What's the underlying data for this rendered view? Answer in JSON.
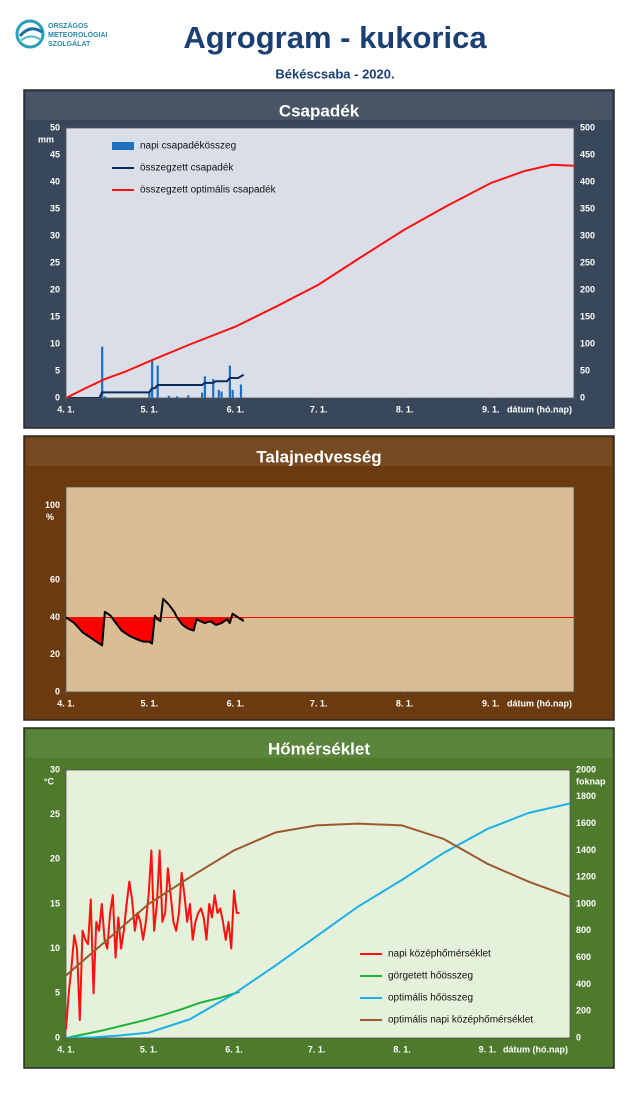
{
  "header": {
    "logo_text": [
      "ORSZÁGOS",
      "METEOROLÓGIAI",
      "SZOLGÁLAT"
    ],
    "title": "Agrogram - kukorica",
    "subtitle": "Békéscsaba - 2020."
  },
  "chart_data": [
    {
      "type": "combo",
      "title": "Csapadék",
      "panel_color": "#38475a",
      "plot_color": "#d9dee8",
      "xlabel": "dátum (hó.nap)",
      "ylabel": "mm",
      "legend": "upper-left",
      "xlim": [
        0,
        183
      ],
      "xticks": [
        {
          "value": 0,
          "label": "4. 1."
        },
        {
          "value": 30,
          "label": "5. 1."
        },
        {
          "value": 61,
          "label": "6. 1."
        },
        {
          "value": 91,
          "label": "7. 1."
        },
        {
          "value": 122,
          "label": "8. 1."
        },
        {
          "value": 153,
          "label": "9. 1."
        }
      ],
      "ylim": [
        0,
        50
      ],
      "yticks": [
        0,
        5,
        10,
        15,
        20,
        25,
        30,
        35,
        40,
        45,
        50
      ],
      "y2lim": [
        0,
        500
      ],
      "y2ticks": [
        0,
        50,
        100,
        150,
        200,
        250,
        300,
        350,
        400,
        450,
        500
      ],
      "series": [
        {
          "name": "napi csapadékösszeg",
          "type": "bar",
          "color": "#1f6fc0",
          "x": [
            13,
            14,
            30,
            31,
            33,
            37,
            40,
            44,
            49,
            50,
            53,
            55,
            56,
            59,
            60,
            63
          ],
          "values": [
            9.5,
            0.3,
            1,
            7,
            6,
            0.4,
            0.3,
            0.5,
            1,
            4,
            3.5,
            1.5,
            1.2,
            6,
            1.5,
            2.5
          ]
        },
        {
          "name": "összegzett csapadék",
          "type": "line",
          "axis": "y2",
          "color": "#0d2a5c",
          "x": [
            0,
            12,
            13,
            30,
            31,
            32,
            33,
            49,
            50,
            53,
            54,
            58,
            59,
            62,
            63,
            64
          ],
          "values": [
            0,
            0,
            10.5,
            10.5,
            18,
            18,
            24,
            24,
            28,
            28,
            31,
            31,
            37,
            37,
            40,
            43
          ]
        },
        {
          "name": "összegzett optimális csapadék",
          "type": "line",
          "axis": "y2",
          "color": "#ff1010",
          "x": [
            0,
            7,
            14,
            21,
            30,
            45,
            61,
            76,
            91,
            106,
            122,
            137,
            153,
            165,
            175,
            183
          ],
          "values": [
            0,
            18,
            35,
            48,
            68,
            100,
            132,
            170,
            210,
            260,
            312,
            355,
            398,
            420,
            432,
            430
          ]
        }
      ]
    },
    {
      "type": "combo",
      "title": "Talajnedvesség",
      "panel_color": "#6b3a0e",
      "plot_color": "#d9bd95",
      "xlabel": "dátum (hó.nap)",
      "ylabel": "%",
      "xlim": [
        0,
        183
      ],
      "xticks": [
        {
          "value": 0,
          "label": "4. 1."
        },
        {
          "value": 30,
          "label": "5. 1."
        },
        {
          "value": 61,
          "label": "6. 1."
        },
        {
          "value": 91,
          "label": "7. 1."
        },
        {
          "value": 122,
          "label": "8. 1."
        },
        {
          "value": 153,
          "label": "9. 1."
        }
      ],
      "ylim": [
        0,
        110
      ],
      "yticks": [
        0,
        20,
        40,
        60,
        100
      ],
      "reference": 40,
      "reference_color": "#ff0000",
      "series": [
        {
          "type": "line",
          "color": "#000000",
          "deficit_color": "#ff0000",
          "x": [
            0,
            3,
            6,
            10,
            12,
            13,
            14,
            16,
            18,
            20,
            23,
            26,
            28,
            30,
            31,
            32,
            33,
            34,
            35,
            37,
            39,
            40,
            42,
            44,
            46,
            47,
            50,
            52,
            54,
            56,
            58,
            59,
            60,
            62,
            64
          ],
          "values": [
            40,
            37,
            32,
            28,
            26,
            25,
            43,
            41,
            37,
            33,
            30,
            28,
            27,
            27,
            26,
            41,
            39,
            38,
            50,
            47,
            43,
            40,
            36,
            34,
            33,
            39,
            37,
            38,
            36,
            37,
            39,
            37,
            42,
            40,
            38
          ]
        }
      ]
    },
    {
      "type": "combo",
      "title": "Hőmérséklet",
      "panel_color": "#4d7a2b",
      "plot_color": "#e5f1db",
      "xlabel": "dátum (hó.nap)",
      "ylabel": "°C",
      "y2label": "foknap",
      "legend": "lower-right",
      "xlim": [
        0,
        183
      ],
      "xticks": [
        {
          "value": 0,
          "label": "4. 1."
        },
        {
          "value": 30,
          "label": "5. 1."
        },
        {
          "value": 61,
          "label": "6. 1."
        },
        {
          "value": 91,
          "label": "7. 1."
        },
        {
          "value": 122,
          "label": "8. 1."
        },
        {
          "value": 153,
          "label": "9. 1."
        }
      ],
      "ylim": [
        0,
        30
      ],
      "yticks": [
        0,
        5,
        10,
        15,
        20,
        25,
        30
      ],
      "y2lim": [
        0,
        2000
      ],
      "y2ticks": [
        0,
        200,
        400,
        600,
        800,
        1000,
        1200,
        1400,
        1600,
        1800,
        2000
      ],
      "series": [
        {
          "name": "napi középhőmérséklet",
          "type": "line",
          "color": "#ff1010",
          "x": [
            0,
            1,
            2,
            3,
            4,
            5,
            6,
            7,
            8,
            9,
            10,
            11,
            12,
            13,
            14,
            15,
            16,
            17,
            18,
            19,
            20,
            21,
            22,
            23,
            24,
            25,
            26,
            27,
            28,
            29,
            30,
            31,
            32,
            33,
            34,
            35,
            36,
            37,
            38,
            39,
            40,
            41,
            42,
            43,
            44,
            45,
            46,
            47,
            48,
            49,
            50,
            51,
            52,
            53,
            54,
            55,
            56,
            57,
            58,
            59,
            60,
            61,
            62,
            63
          ],
          "values": [
            1,
            5,
            8,
            11.5,
            10,
            2,
            12,
            11,
            10.5,
            15.5,
            5,
            13,
            12,
            15,
            11,
            10,
            14,
            16,
            9,
            13.5,
            10,
            12,
            15,
            17.5,
            15.5,
            12,
            14,
            13,
            11,
            13,
            16,
            21,
            12,
            15,
            21,
            13,
            14,
            19,
            16,
            13,
            12,
            14,
            18.5,
            16,
            13,
            15,
            11,
            13,
            14,
            14.5,
            13.5,
            11,
            15,
            13.5,
            16,
            14,
            14.5,
            13,
            11,
            13,
            10,
            16.5,
            14,
            14
          ]
        },
        {
          "name": "görgetett hőösszeg",
          "type": "line",
          "axis": "y2",
          "color": "#1db33a",
          "x": [
            0,
            7,
            14,
            21,
            28,
            35,
            42,
            49,
            56,
            63
          ],
          "values": [
            0,
            30,
            60,
            95,
            130,
            170,
            215,
            265,
            300,
            345
          ]
        },
        {
          "name": "optimális hőösszeg",
          "type": "line",
          "axis": "y2",
          "color": "#1ab0e8",
          "x": [
            0,
            10,
            20,
            30,
            45,
            61,
            76,
            91,
            106,
            122,
            137,
            153,
            168,
            183
          ],
          "values": [
            0,
            5,
            20,
            40,
            140,
            330,
            540,
            760,
            980,
            1180,
            1380,
            1560,
            1680,
            1750
          ]
        },
        {
          "name": "optimális napi középhőmérséklet",
          "type": "line",
          "color": "#9a5a2c",
          "x": [
            0,
            15,
            30,
            45,
            61,
            76,
            91,
            106,
            122,
            137,
            153,
            168,
            183
          ],
          "values": [
            7,
            11,
            15,
            18,
            21,
            23,
            23.8,
            24,
            23.8,
            22.3,
            19.5,
            17.5,
            15.8
          ]
        }
      ]
    }
  ]
}
